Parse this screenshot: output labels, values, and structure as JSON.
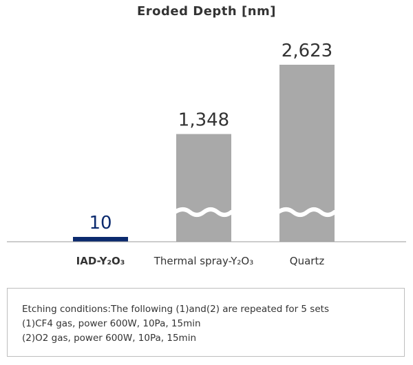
{
  "chart_data": {
    "type": "bar",
    "title": "Eroded Depth [nm]",
    "categories": [
      "IAD-Y₂O₃",
      "Thermal spray-Y₂O₃",
      "Quartz"
    ],
    "values": [
      10,
      1348,
      2623
    ],
    "value_labels": [
      "10",
      "1,348",
      "2,623"
    ],
    "axis_break": true,
    "highlight_category": "IAD-Y₂O₃",
    "grid": false,
    "legend": "none"
  },
  "colors": {
    "highlight": "#0b2a6e",
    "bar": "#a9a9a9",
    "axis": "#999999",
    "text": "#333333"
  },
  "notes": {
    "lines": [
      "Etching conditions:The following (1)and(2) are repeated for 5 sets",
      "(1)CF4 gas, power 600W, 10Pa, 15min",
      "(2)O2 gas, power 600W, 10Pa, 15min"
    ]
  }
}
